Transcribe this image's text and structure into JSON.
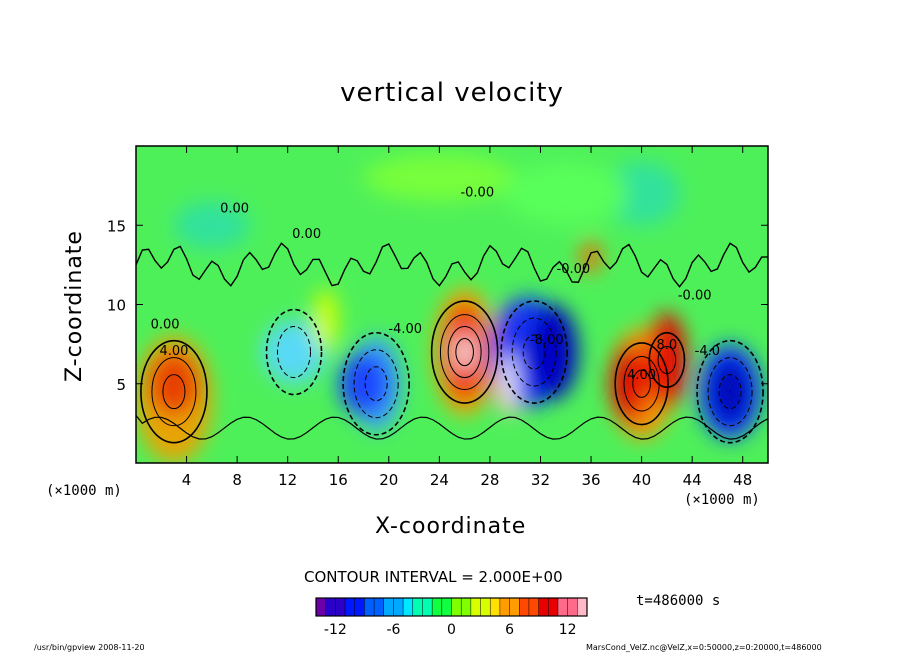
{
  "chart_data": {
    "type": "heatmap",
    "title": "vertical velocity",
    "xlabel": "X-coordinate",
    "ylabel": "Z-coordinate",
    "x_unit_left": "(×1000 m)",
    "x_unit_right": "(×1000 m)",
    "xlim": [
      0,
      50
    ],
    "ylim": [
      0,
      20
    ],
    "x_ticks": [
      4,
      8,
      12,
      16,
      20,
      24,
      28,
      32,
      36,
      40,
      44,
      48
    ],
    "y_ticks": [
      5,
      10,
      15
    ],
    "contour_interval_text": "CONTOUR INTERVAL = 2.000E+00",
    "contour_labels": [
      {
        "text": "4.00",
        "x": 3.0,
        "y": 6.8
      },
      {
        "text": "0.00",
        "x": 2.3,
        "y": 8.5
      },
      {
        "text": "-4.00",
        "x": 21.3,
        "y": 8.2
      },
      {
        "text": "-0.00",
        "x": 27.0,
        "y": 16.8
      },
      {
        "text": "0.00",
        "x": 13.5,
        "y": 14.2
      },
      {
        "text": "0.00",
        "x": 7.8,
        "y": 15.8
      },
      {
        "text": "-8.00",
        "x": 32.5,
        "y": 7.5
      },
      {
        "text": "-0.00",
        "x": 34.6,
        "y": 12.0
      },
      {
        "text": "-0.00",
        "x": 44.2,
        "y": 10.3
      },
      {
        "text": "8.0",
        "x": 42.0,
        "y": 7.2
      },
      {
        "text": "-4.0",
        "x": 45.2,
        "y": 6.8
      },
      {
        "text": "4.00",
        "x": 40.0,
        "y": 5.3
      }
    ],
    "colorbar": {
      "range": [
        -14,
        14
      ],
      "ticks": [
        -12,
        -6,
        0,
        6,
        12
      ],
      "colors": [
        "#6b00a8",
        "#2b00c8",
        "#0018ff",
        "#0060ff",
        "#00a8ff",
        "#00e8ff",
        "#00ffb0",
        "#10ff40",
        "#80ff00",
        "#d8ff00",
        "#ffe000",
        "#ff9c00",
        "#ff4800",
        "#e80000",
        "#ff6a8a",
        "#ffb8c8"
      ]
    },
    "time_text": "t=486000 s"
  },
  "footer": {
    "left": "/usr/bin/gpview  2008-11-20",
    "right": "MarsCond_VelZ.nc@VelZ,x=0:50000,z=0:20000,t=486000"
  }
}
